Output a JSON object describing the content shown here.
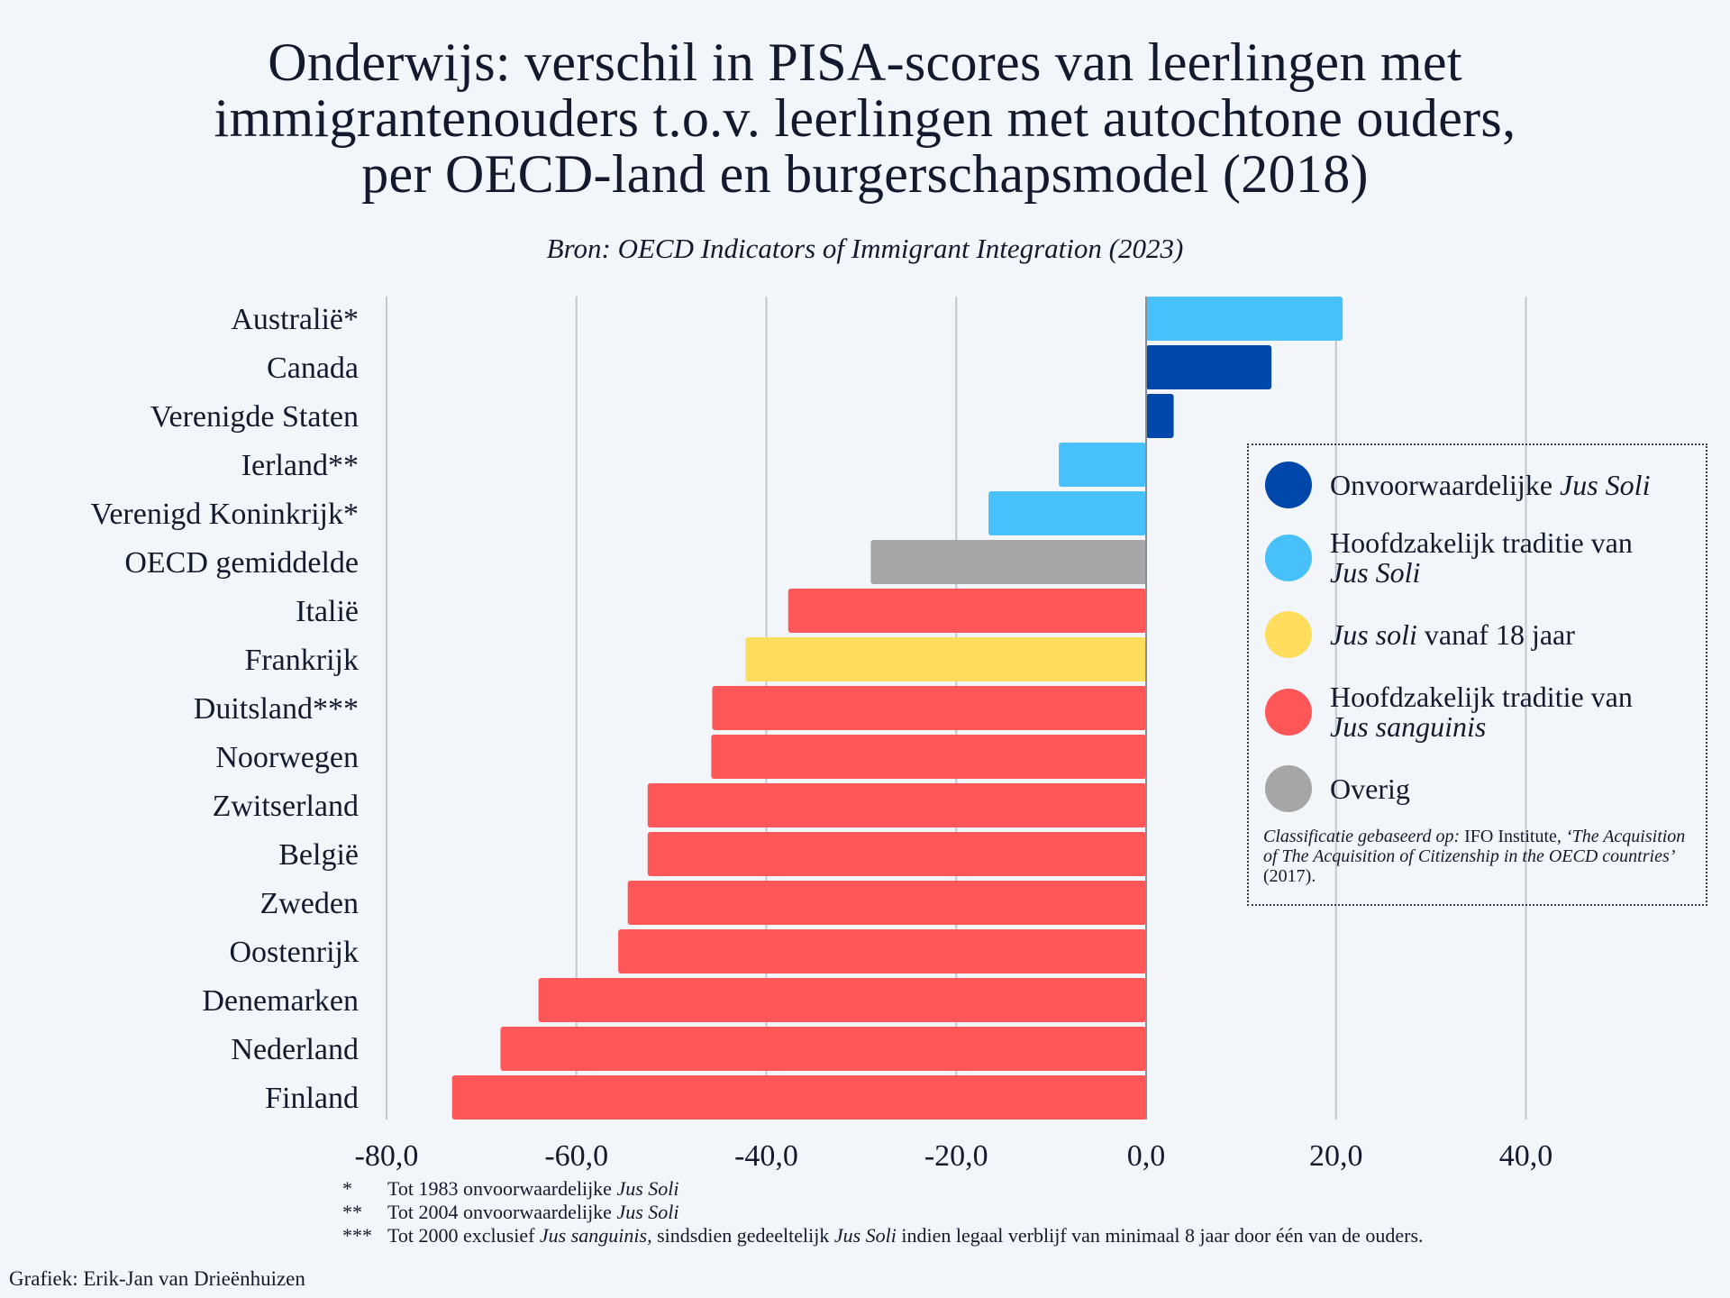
{
  "title": {
    "lines": [
      "Onderwijs: verschil in PISA-scores van leerlingen met",
      "immigrantenouders t.o.v. leerlingen met autochtone ouders,",
      "per OECD-land en burgerschapsmodel (2018)"
    ]
  },
  "subtitle": "Bron: OECD Indicators of Immigrant Integration (2023)",
  "legend": {
    "items": [
      {
        "key": "unconditional",
        "color": "#0047ab",
        "text_plain": "Onvoorwaardelijke ",
        "text_italic": "Jus Soli",
        "order": "plain-italic"
      },
      {
        "key": "mainly_soli",
        "color": "#48c1fb",
        "text_plain": "Hoofdzakelijk traditie van",
        "text_italic": "Jus Soli",
        "order": "plain-break-italic"
      },
      {
        "key": "soli_18",
        "color": "#ffdd5c",
        "text_plain": " vanaf 18 jaar",
        "text_italic": "Jus soli",
        "order": "italic-plain"
      },
      {
        "key": "mainly_sanguinis",
        "color": "#ff5757",
        "text_plain": "Hoofdzakelijk traditie van",
        "text_italic": "Jus sanguinis",
        "order": "plain-break-italic"
      },
      {
        "key": "other",
        "color": "#a6a6a6",
        "text_plain": "Overig",
        "text_italic": "",
        "order": "plain"
      }
    ],
    "note": {
      "prefix_italic": "Classificatie gebaseerd op:",
      "institute": " IFO Institute, ",
      "work_italic": "‘The Acquisition of The Acquisition of Citizenship in the OECD countries’",
      "year": " (2017)."
    }
  },
  "footnotes": [
    {
      "mark": "*",
      "parts": [
        {
          "t": "Tot 1983 onvoorwaardelijke ",
          "i": false
        },
        {
          "t": "Jus Soli",
          "i": true
        }
      ]
    },
    {
      "mark": "**",
      "parts": [
        {
          "t": "Tot 2004 onvoorwaardelijke ",
          "i": false
        },
        {
          "t": "Jus Soli",
          "i": true
        }
      ]
    },
    {
      "mark": "***",
      "parts": [
        {
          "t": "Tot 2000 exclusief ",
          "i": false
        },
        {
          "t": "Jus sanguinis,",
          "i": true
        },
        {
          "t": " sindsdien gedeeltelijk ",
          "i": false
        },
        {
          "t": "Jus Soli",
          "i": true
        },
        {
          "t": " indien legaal verblijf van minimaal 8 jaar door één van de ouders.",
          "i": false
        }
      ]
    }
  ],
  "credit": "Grafiek: Erik-Jan van Drieënhuizen",
  "chart_data": {
    "type": "bar",
    "orientation": "horizontal",
    "title": "Onderwijs: verschil in PISA-scores van leerlingen met immigrantenouders t.o.v. leerlingen met autochtone ouders, per OECD-land en burgerschapsmodel (2018)",
    "subtitle": "Bron: OECD Indicators of Immigrant Integration (2023)",
    "xlabel": "",
    "ylabel": "",
    "xlim": [
      -80,
      55
    ],
    "xticks": [
      -80,
      -60,
      -40,
      -20,
      0,
      20,
      40
    ],
    "xtick_labels": [
      "-80,0",
      "-60,0",
      "-40,0",
      "-20,0",
      "0,0",
      "20,0",
      "40,0"
    ],
    "grid": "vertical",
    "legend_position": "right",
    "categories": [
      "Australië*",
      "Canada",
      "Verenigde Staten",
      "Ierland**",
      "Verenigd Koninkrijk*",
      "OECD gemiddelde",
      "Italië",
      "Frankrijk",
      "Duitsland***",
      "Noorwegen",
      "Zwitserland",
      "België",
      "Zweden",
      "Oostenrijk",
      "Denemarken",
      "Nederland",
      "Finland"
    ],
    "values": [
      20.7,
      13.2,
      2.9,
      -9.2,
      -16.6,
      -29.0,
      -37.7,
      -42.2,
      -45.7,
      -45.8,
      -52.5,
      -52.5,
      -54.6,
      -55.6,
      -64.0,
      -68.0,
      -73.1
    ],
    "groups": [
      "mainly_soli",
      "unconditional",
      "unconditional",
      "mainly_soli",
      "mainly_soli",
      "other",
      "mainly_sanguinis",
      "soli_18",
      "mainly_sanguinis",
      "mainly_sanguinis",
      "mainly_sanguinis",
      "mainly_sanguinis",
      "mainly_sanguinis",
      "mainly_sanguinis",
      "mainly_sanguinis",
      "mainly_sanguinis",
      "mainly_sanguinis"
    ],
    "group_colors": {
      "unconditional": "#0047ab",
      "mainly_soli": "#48c1fb",
      "soli_18": "#ffdd5c",
      "mainly_sanguinis": "#ff5757",
      "other": "#a6a6a6"
    }
  }
}
